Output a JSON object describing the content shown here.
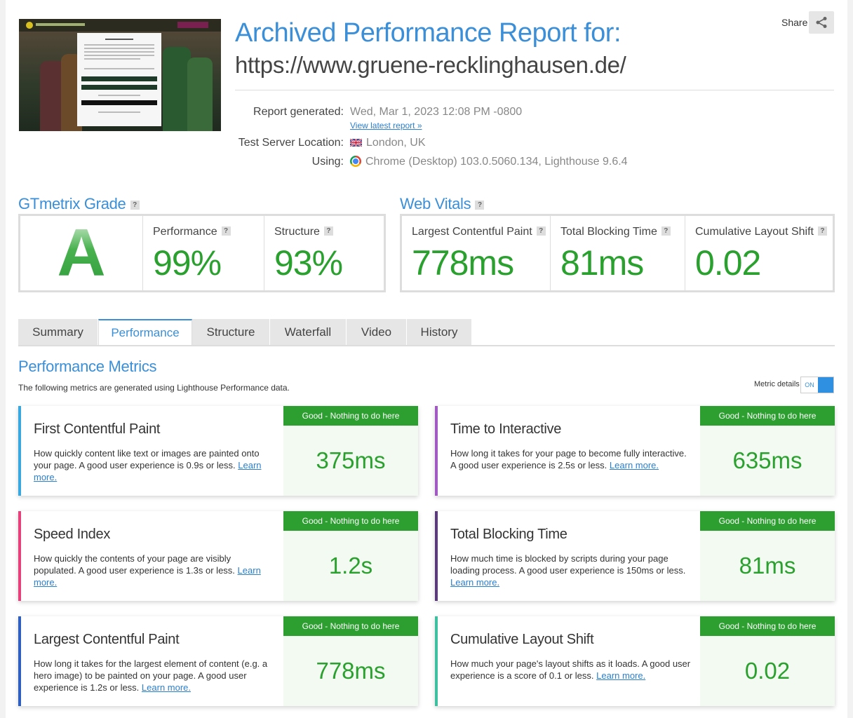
{
  "header": {
    "title": "Archived Performance Report for:",
    "url": "https://www.gruene-recklinghausen.de/",
    "share_label": "Share",
    "report_generated_label": "Report generated:",
    "report_generated_value": "Wed, Mar 1, 2023 12:08 PM -0800",
    "view_latest_link": "View latest report »",
    "location_label": "Test Server Location:",
    "location_value": "London, UK",
    "using_label": "Using:",
    "using_value": "Chrome (Desktop) 103.0.5060.134, Lighthouse 9.6.4"
  },
  "grade": {
    "heading": "GTmetrix Grade",
    "help": "?",
    "letter": "A",
    "performance_label": "Performance",
    "performance_value": "99%",
    "structure_label": "Structure",
    "structure_value": "93%"
  },
  "vitals": {
    "heading": "Web Vitals",
    "help": "?",
    "lcp_label": "Largest Contentful Paint",
    "lcp_value": "778ms",
    "tbt_label": "Total Blocking Time",
    "tbt_value": "81ms",
    "cls_label": "Cumulative Layout Shift",
    "cls_value": "0.02"
  },
  "tabs": [
    {
      "label": "Summary"
    },
    {
      "label": "Performance"
    },
    {
      "label": "Structure"
    },
    {
      "label": "Waterfall"
    },
    {
      "label": "Video"
    },
    {
      "label": "History"
    }
  ],
  "metrics_section": {
    "title": "Performance Metrics",
    "subtitle": "The following metrics are generated using Lighthouse Performance data.",
    "metric_details_label": "Metric details",
    "toggle_state": "ON"
  },
  "cards": [
    {
      "name": "First Contentful Paint",
      "desc": "How quickly content like text or images are painted onto your page. A good user experience is 0.9s or less.",
      "link": "Learn more.",
      "badge": "Good - Nothing to do here",
      "value": "375ms",
      "color": "#3aa8e0"
    },
    {
      "name": "Time to Interactive",
      "desc": "How long it takes for your page to become fully interactive. A good user experience is 2.5s or less.",
      "link": "Learn more.",
      "badge": "Good - Nothing to do here",
      "value": "635ms",
      "color": "#a259c4"
    },
    {
      "name": "Speed Index",
      "desc": "How quickly the contents of your page are visibly populated. A good user experience is 1.3s or less.",
      "link": "Learn more.",
      "badge": "Good - Nothing to do here",
      "value": "1.2s",
      "color": "#e8407a"
    },
    {
      "name": "Total Blocking Time",
      "desc": "How much time is blocked by scripts during your page loading process. A good user experience is 150ms or less.",
      "link": "Learn more.",
      "badge": "Good - Nothing to do here",
      "value": "81ms",
      "color": "#5a3a7a"
    },
    {
      "name": "Largest Contentful Paint",
      "desc": "How long it takes for the largest element of content (e.g. a hero image) to be painted on your page. A good user experience is 1.2s or less.",
      "link": "Learn more.",
      "badge": "Good - Nothing to do here",
      "value": "778ms",
      "color": "#2f5fc0"
    },
    {
      "name": "Cumulative Layout Shift",
      "desc": "How much your page's layout shifts as it loads. A good user experience is a score of 0.1 or less.",
      "link": "Learn more.",
      "badge": "Good - Nothing to do here",
      "value": "0.02",
      "color": "#3cc0a0"
    }
  ]
}
